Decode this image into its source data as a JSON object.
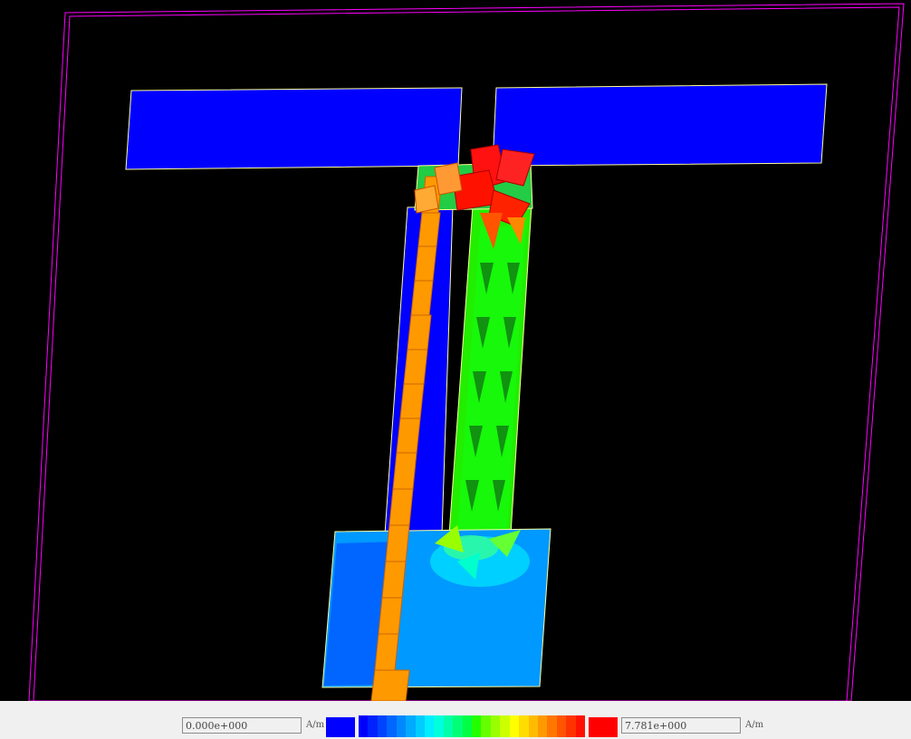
{
  "legend": {
    "min_value": "0.000e+000",
    "max_value": "7.781e+000",
    "min_unit": "A/m",
    "max_unit": "A/m",
    "min_color": "#0000ff",
    "max_color": "#ff0000",
    "ramp_colors": [
      "#0000ff",
      "#0022ff",
      "#0044ff",
      "#0066ff",
      "#0088ff",
      "#00aaff",
      "#00ccff",
      "#00eeff",
      "#00ffdd",
      "#00ffaa",
      "#00ff77",
      "#00ff44",
      "#22ff00",
      "#66ff00",
      "#99ff00",
      "#ccff00",
      "#ffff00",
      "#ffdd00",
      "#ffbb00",
      "#ff9900",
      "#ff7700",
      "#ff5500",
      "#ff3300",
      "#ff1100"
    ]
  },
  "colors": {
    "background": "#000000",
    "boundary": "#ff00ff",
    "outline": "#ffff99",
    "low": "#0000ff",
    "mid": "#00ff00",
    "high": "#ff9900",
    "peak": "#ff0000"
  }
}
